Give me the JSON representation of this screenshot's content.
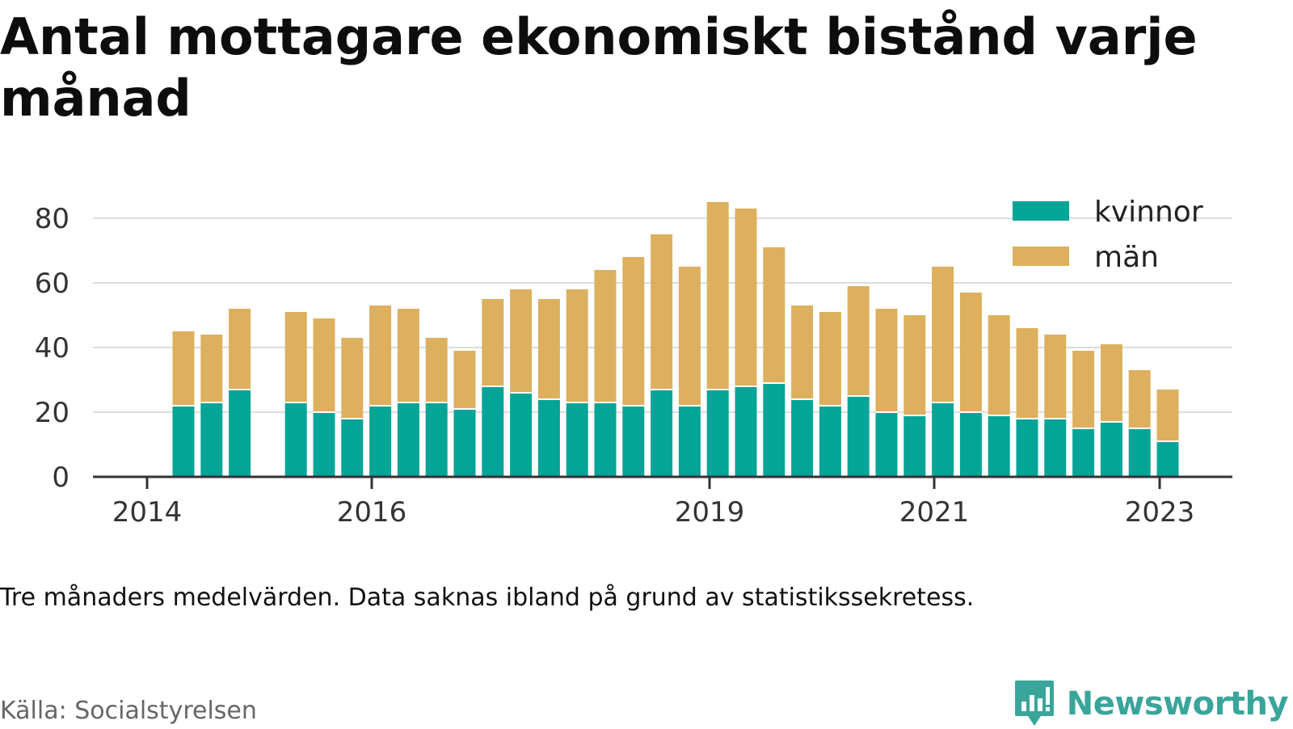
{
  "title": "Antal mottagare ekonomiskt bistånd varje månad",
  "note": "Tre månaders medelvärden. Data saknas ibland på grund av statistikssekretess.",
  "source": "Källa: Socialstyrelsen",
  "logo_text": "Newsworthy",
  "colors": {
    "kvinnor": "#04a497",
    "man": "#dcb05e",
    "grid": "#dddddd",
    "axis": "#333333"
  },
  "chart_data": {
    "type": "bar",
    "stacked": true,
    "ylim": [
      0,
      90
    ],
    "yticks": [
      0,
      20,
      40,
      60,
      80
    ],
    "xticks": [
      "2014",
      "2016",
      "2019",
      "2021",
      "2023"
    ],
    "legend_position": "top-right",
    "grid": true,
    "series": [
      {
        "name": "kvinnor",
        "values": [
          22,
          23,
          27,
          null,
          23,
          20,
          18,
          22,
          23,
          23,
          21,
          28,
          26,
          24,
          23,
          23,
          22,
          27,
          22,
          27,
          28,
          29,
          24,
          22,
          25,
          20,
          19,
          23,
          20,
          19,
          18,
          18,
          15,
          17,
          15,
          11
        ]
      },
      {
        "name": "män",
        "values": [
          23,
          21,
          25,
          null,
          28,
          29,
          25,
          31,
          29,
          20,
          18,
          27,
          32,
          31,
          35,
          41,
          46,
          48,
          43,
          58,
          55,
          42,
          29,
          29,
          34,
          32,
          31,
          42,
          37,
          31,
          28,
          26,
          24,
          24,
          18,
          16
        ]
      }
    ]
  }
}
